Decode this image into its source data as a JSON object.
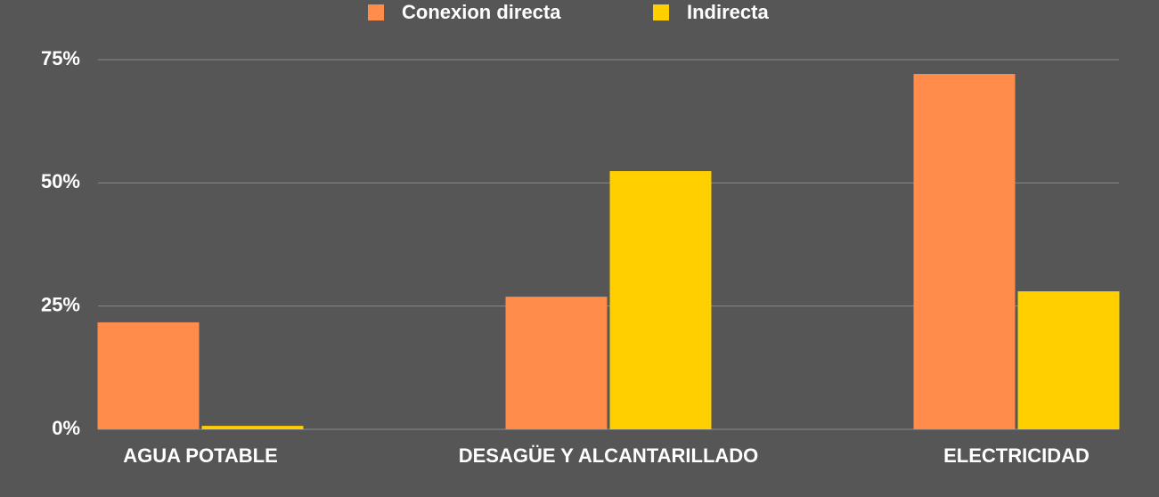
{
  "chart_data": {
    "type": "bar",
    "categories": [
      "AGUA POTABLE",
      "DESAGÜE Y ALCANTARILLADO",
      "ELECTRICIDAD"
    ],
    "series": [
      {
        "name": "Conexion directa",
        "color": "#ff8c4a",
        "values": [
          21.7,
          26.9,
          72.1
        ]
      },
      {
        "name": "Indirecta",
        "color": "#ffcf00",
        "values": [
          0.7,
          52.4,
          28.0
        ]
      }
    ],
    "ylim": [
      0,
      75
    ],
    "yticks": [
      {
        "value": 0,
        "label": "0%"
      },
      {
        "value": 25,
        "label": "25%"
      },
      {
        "value": 50,
        "label": "50%"
      },
      {
        "value": 75,
        "label": "75%"
      }
    ],
    "grid": true,
    "legend": "top"
  }
}
